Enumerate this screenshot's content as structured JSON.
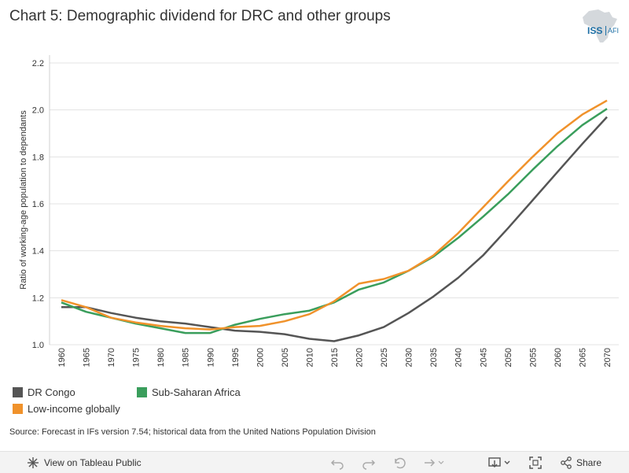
{
  "title": "Chart 5: Demographic dividend for DRC and other groups",
  "logo": {
    "text": "ISS",
    "subtext": "AFI",
    "icon": "africa-map-icon"
  },
  "chart_data": {
    "type": "line",
    "title": "Chart 5: Demographic dividend for DRC and other groups",
    "xlabel": "",
    "ylabel": "Ratio of working-age population to dependants",
    "x": [
      1960,
      1965,
      1970,
      1975,
      1980,
      1985,
      1990,
      1995,
      2000,
      2005,
      2010,
      2015,
      2020,
      2025,
      2030,
      2035,
      2040,
      2045,
      2050,
      2055,
      2060,
      2065,
      2070
    ],
    "x_tick_labels": [
      "1960",
      "1965",
      "1970",
      "1975",
      "1980",
      "1985",
      "1990",
      "1995",
      "2000",
      "2005",
      "2010",
      "2015",
      "2020",
      "2025",
      "2030",
      "2035",
      "2040",
      "2045",
      "2050",
      "2055",
      "2060",
      "2065",
      "2070"
    ],
    "ylim": [
      1.0,
      2.2
    ],
    "y_ticks": [
      1.0,
      1.2,
      1.4,
      1.6,
      1.8,
      2.0,
      2.2
    ],
    "y_tick_labels": [
      "1.0",
      "1.2",
      "1.4",
      "1.6",
      "1.8",
      "2.0",
      "2.2"
    ],
    "grid": true,
    "series": [
      {
        "name": "DR Congo",
        "color": "#555555",
        "values": [
          1.16,
          1.16,
          1.135,
          1.115,
          1.1,
          1.09,
          1.075,
          1.06,
          1.055,
          1.045,
          1.025,
          1.015,
          1.04,
          1.075,
          1.135,
          1.205,
          1.285,
          1.38,
          1.495,
          1.615,
          1.735,
          1.855,
          1.97
        ]
      },
      {
        "name": "Sub-Saharan Africa",
        "color": "#3a9e5c",
        "values": [
          1.18,
          1.14,
          1.115,
          1.09,
          1.07,
          1.05,
          1.05,
          1.085,
          1.11,
          1.13,
          1.145,
          1.18,
          1.235,
          1.265,
          1.315,
          1.375,
          1.455,
          1.545,
          1.64,
          1.745,
          1.845,
          1.935,
          2.005
        ]
      },
      {
        "name": "Low-income globally",
        "color": "#f0922b",
        "values": [
          1.19,
          1.16,
          1.115,
          1.095,
          1.08,
          1.07,
          1.065,
          1.075,
          1.08,
          1.1,
          1.13,
          1.185,
          1.26,
          1.28,
          1.315,
          1.38,
          1.475,
          1.585,
          1.695,
          1.8,
          1.9,
          1.98,
          2.04
        ]
      }
    ]
  },
  "legend": {
    "items": [
      {
        "label": "DR Congo",
        "color": "#555555"
      },
      {
        "label": "Sub-Saharan Africa",
        "color": "#3a9e5c"
      },
      {
        "label": "Low-income globally",
        "color": "#f0922b"
      }
    ]
  },
  "source": "Source: Forecast in IFs version 7.54; historical data from the United Nations Population Division",
  "footer": {
    "view_label": "View on Tableau Public",
    "share_label": "Share",
    "tools": [
      "undo-icon",
      "redo-icon",
      "revert-icon",
      "refresh-icon",
      "download-icon",
      "fullscreen-icon",
      "share-icon"
    ]
  }
}
